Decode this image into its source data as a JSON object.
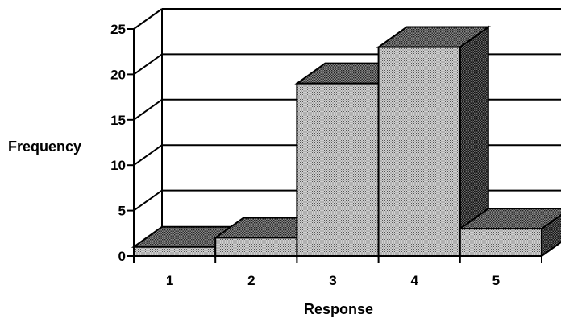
{
  "chart_data": {
    "type": "bar",
    "style": "3d-column",
    "categories": [
      "1",
      "2",
      "3",
      "4",
      "5"
    ],
    "values": [
      1,
      2,
      19,
      23,
      3
    ],
    "xlabel": "Response",
    "ylabel": "Frequency",
    "ylim": [
      0,
      25
    ],
    "yticks": [
      "0",
      "5",
      "10",
      "15",
      "20",
      "25"
    ],
    "grid": true,
    "colors": {
      "bar_front": "#bdbdbd",
      "bar_top": "#7a7a7a",
      "bar_side": "#5a5a5a",
      "axis": "#000000"
    }
  }
}
